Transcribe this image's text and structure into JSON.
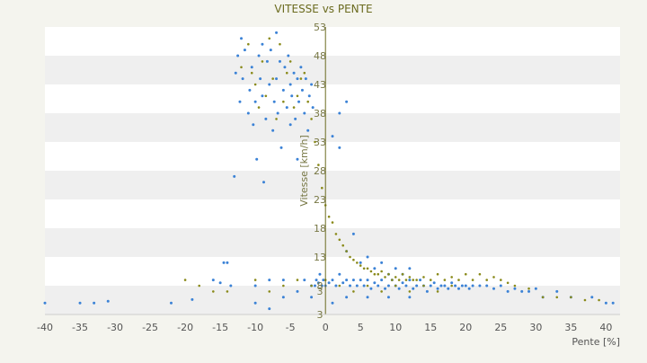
{
  "colors": {
    "background": "#f4f4ee",
    "plot_band_white": "#ffffff",
    "plot_band_gray": "#efefef",
    "axis": "#6b6b1f",
    "series_a": "#3b82d6",
    "series_b": "#8a8a1a"
  },
  "chart_data": {
    "type": "scatter",
    "title": "VITESSE vs PENTE",
    "xlabel": "Pente [%]",
    "ylabel": "Vitesse [km/h]",
    "xlim": [
      -40,
      42
    ],
    "ylim": [
      3,
      53
    ],
    "x_ticks": [
      "-40",
      "-35",
      "-30",
      "-25",
      "-20",
      "-15",
      "-10",
      "-5",
      "0",
      "5",
      "10",
      "15",
      "20",
      "25",
      "30",
      "35",
      "40"
    ],
    "x_tick_values": [
      -40,
      -35,
      -30,
      -25,
      -20,
      -15,
      -10,
      -5,
      0,
      5,
      10,
      15,
      20,
      25,
      30,
      35,
      40
    ],
    "y_ticks": [
      "53",
      "48",
      "43",
      "38",
      "33",
      "28",
      "23",
      "18",
      "13",
      "8",
      "3"
    ],
    "y_tick_values": [
      53,
      48,
      43,
      38,
      33,
      28,
      23,
      18,
      13,
      8,
      3
    ],
    "bottom_label": "3",
    "grid": "alternating horizontal bands",
    "legend": "none",
    "series": [
      {
        "color_key": "series_a",
        "points": [
          [
            -40,
            5
          ],
          [
            -35,
            5
          ],
          [
            -33,
            5
          ],
          [
            -31,
            5.3
          ],
          [
            -22,
            5
          ],
          [
            -19,
            5.6
          ],
          [
            -16,
            9
          ],
          [
            -15,
            8.5
          ],
          [
            -14.5,
            12
          ],
          [
            -14,
            12
          ],
          [
            -13.5,
            8
          ],
          [
            -13,
            27
          ],
          [
            -12.8,
            45
          ],
          [
            -12.5,
            48
          ],
          [
            -12.2,
            40
          ],
          [
            -12,
            51
          ],
          [
            -11.8,
            44
          ],
          [
            -11.5,
            49
          ],
          [
            -11,
            38
          ],
          [
            -10.8,
            42
          ],
          [
            -10.5,
            46
          ],
          [
            -10.3,
            36
          ],
          [
            -10,
            40
          ],
          [
            -10,
            5
          ],
          [
            -10,
            8
          ],
          [
            -9.8,
            30
          ],
          [
            -9.5,
            48
          ],
          [
            -9.3,
            44
          ],
          [
            -9,
            41
          ],
          [
            -9,
            50
          ],
          [
            -8.8,
            26
          ],
          [
            -8.5,
            37
          ],
          [
            -8.3,
            47
          ],
          [
            -8,
            43
          ],
          [
            -8,
            9
          ],
          [
            -7.8,
            49
          ],
          [
            -7.5,
            35
          ],
          [
            -7.3,
            40
          ],
          [
            -7,
            44
          ],
          [
            -7,
            52
          ],
          [
            -6.8,
            38
          ],
          [
            -6.5,
            47
          ],
          [
            -6.3,
            32
          ],
          [
            -6,
            42
          ],
          [
            -6,
            9
          ],
          [
            -5.8,
            46
          ],
          [
            -5.5,
            39
          ],
          [
            -5.3,
            48
          ],
          [
            -5,
            43
          ],
          [
            -5,
            36
          ],
          [
            -4.8,
            41
          ],
          [
            -4.5,
            45
          ],
          [
            -4.3,
            37
          ],
          [
            -4,
            44
          ],
          [
            -4,
            30
          ],
          [
            -3.8,
            40
          ],
          [
            -3.5,
            46
          ],
          [
            -3.3,
            42
          ],
          [
            -3,
            38
          ],
          [
            -3,
            9
          ],
          [
            -2.8,
            44
          ],
          [
            -2.5,
            35
          ],
          [
            -2.3,
            41
          ],
          [
            -2,
            43
          ],
          [
            -2,
            8
          ],
          [
            -1.8,
            39
          ],
          [
            -1.5,
            8
          ],
          [
            -1.3,
            9
          ],
          [
            -1,
            8.5
          ],
          [
            -0.8,
            10
          ],
          [
            -0.5,
            8
          ],
          [
            -0.3,
            9
          ],
          [
            0,
            8
          ],
          [
            0.5,
            8.5
          ],
          [
            1,
            9
          ],
          [
            1.5,
            8
          ],
          [
            2,
            10
          ],
          [
            2.5,
            8.5
          ],
          [
            3,
            9
          ],
          [
            3,
            14
          ],
          [
            3.5,
            8
          ],
          [
            4,
            9
          ],
          [
            4,
            17
          ],
          [
            4.5,
            8
          ],
          [
            5,
            9
          ],
          [
            5.5,
            8
          ],
          [
            6,
            9
          ],
          [
            6.5,
            7.5
          ],
          [
            7,
            8.5
          ],
          [
            7.5,
            8
          ],
          [
            8,
            9
          ],
          [
            8.5,
            7.5
          ],
          [
            9,
            8
          ],
          [
            9.5,
            9
          ],
          [
            10,
            8
          ],
          [
            10.5,
            7.5
          ],
          [
            11,
            8.5
          ],
          [
            11.5,
            8
          ],
          [
            12,
            9
          ],
          [
            12.5,
            7.5
          ],
          [
            13,
            8
          ],
          [
            13.5,
            9
          ],
          [
            14,
            8
          ],
          [
            14.5,
            7
          ],
          [
            15,
            8
          ],
          [
            15.5,
            8.5
          ],
          [
            16,
            7.5
          ],
          [
            16.5,
            8
          ],
          [
            17,
            8
          ],
          [
            17.5,
            7.5
          ],
          [
            18,
            8.5
          ],
          [
            18.5,
            8
          ],
          [
            19,
            7.5
          ],
          [
            19.5,
            8
          ],
          [
            20,
            8
          ],
          [
            20.5,
            7.5
          ],
          [
            21,
            8
          ],
          [
            22,
            8
          ],
          [
            23,
            8
          ],
          [
            24,
            7.5
          ],
          [
            25,
            8
          ],
          [
            26,
            7
          ],
          [
            27,
            7.5
          ],
          [
            28,
            7
          ],
          [
            29,
            7
          ],
          [
            30,
            7.5
          ],
          [
            31,
            6
          ],
          [
            33,
            7
          ],
          [
            35,
            6
          ],
          [
            38,
            6
          ],
          [
            40,
            5
          ],
          [
            41,
            5
          ],
          [
            2,
            38
          ],
          [
            3,
            40
          ],
          [
            2,
            32
          ],
          [
            1,
            34
          ],
          [
            5,
            12
          ],
          [
            6,
            13
          ],
          [
            7,
            11
          ],
          [
            8,
            12
          ],
          [
            9,
            10
          ],
          [
            10,
            11
          ],
          [
            11,
            10
          ],
          [
            12,
            11
          ],
          [
            -8,
            4
          ],
          [
            -6,
            6
          ],
          [
            -4,
            7
          ],
          [
            -2,
            6
          ],
          [
            1,
            5
          ],
          [
            3,
            6
          ],
          [
            6,
            6
          ],
          [
            9,
            6
          ],
          [
            12,
            6
          ]
        ]
      },
      {
        "color_key": "series_b",
        "points": [
          [
            -12,
            46
          ],
          [
            -11,
            50
          ],
          [
            -10.5,
            45
          ],
          [
            -10,
            43
          ],
          [
            -9.5,
            39
          ],
          [
            -9,
            47
          ],
          [
            -8.5,
            41
          ],
          [
            -8,
            51
          ],
          [
            -7.5,
            44
          ],
          [
            -7,
            37
          ],
          [
            -6.5,
            50
          ],
          [
            -6,
            40
          ],
          [
            -5.5,
            45
          ],
          [
            -5,
            47
          ],
          [
            -4.5,
            39
          ],
          [
            -4,
            41
          ],
          [
            -3.5,
            44
          ],
          [
            -3,
            45
          ],
          [
            -2.5,
            40
          ],
          [
            -2,
            37
          ],
          [
            -1.5,
            33
          ],
          [
            -1,
            29
          ],
          [
            -0.5,
            25
          ],
          [
            0,
            22
          ],
          [
            0.5,
            20
          ],
          [
            1,
            19
          ],
          [
            1.5,
            17
          ],
          [
            2,
            16
          ],
          [
            2.5,
            15
          ],
          [
            3,
            14
          ],
          [
            3.5,
            13
          ],
          [
            4,
            12.5
          ],
          [
            4.5,
            12
          ],
          [
            5,
            11.5
          ],
          [
            5.5,
            11
          ],
          [
            6,
            11
          ],
          [
            6.5,
            10.5
          ],
          [
            7,
            10
          ],
          [
            7.5,
            10
          ],
          [
            8,
            10.5
          ],
          [
            8.5,
            9.5
          ],
          [
            9,
            10
          ],
          [
            9.5,
            9
          ],
          [
            10,
            9.5
          ],
          [
            10.5,
            9
          ],
          [
            11,
            10
          ],
          [
            11.5,
            9
          ],
          [
            12,
            9.5
          ],
          [
            12.5,
            9
          ],
          [
            13,
            9
          ],
          [
            14,
            9.5
          ],
          [
            15,
            9
          ],
          [
            16,
            10
          ],
          [
            17,
            9
          ],
          [
            18,
            9.5
          ],
          [
            19,
            9
          ],
          [
            20,
            10
          ],
          [
            21,
            9
          ],
          [
            22,
            10
          ],
          [
            23,
            9
          ],
          [
            24,
            9.5
          ],
          [
            25,
            9
          ],
          [
            26,
            8.5
          ],
          [
            27,
            8
          ],
          [
            29,
            7.5
          ],
          [
            31,
            6
          ],
          [
            33,
            6
          ],
          [
            35,
            6
          ],
          [
            37,
            5.5
          ],
          [
            39,
            5.5
          ],
          [
            -20,
            9
          ],
          [
            -18,
            8
          ],
          [
            -16,
            7
          ],
          [
            -14,
            7
          ],
          [
            -10,
            9
          ],
          [
            -8,
            7
          ],
          [
            -6,
            8
          ],
          [
            -4,
            9
          ],
          [
            -2,
            8
          ],
          [
            0,
            9
          ],
          [
            2,
            8
          ],
          [
            4,
            7
          ],
          [
            6,
            8
          ],
          [
            8,
            7
          ],
          [
            10,
            8
          ],
          [
            12,
            7
          ],
          [
            14,
            8
          ],
          [
            16,
            7
          ],
          [
            18,
            8
          ]
        ]
      }
    ]
  }
}
